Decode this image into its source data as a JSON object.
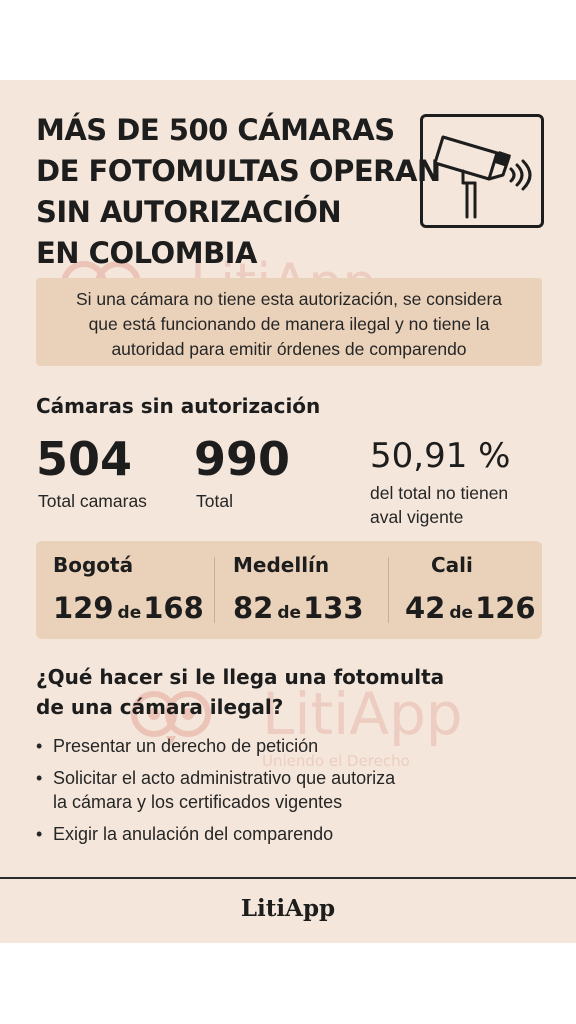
{
  "headline": {
    "lines": [
      "MÁS DE 500 CÁMARAS",
      "DE FOTOMULTAS OPERAN",
      "SIN AUTORIZACIÓN",
      "EN COLOMBIA"
    ]
  },
  "icons": {
    "camera": "security-camera-icon"
  },
  "watermark": {
    "brand": "LitiApp",
    "tagline": "Uniendo el Derecho",
    "color": "#e9b8ad"
  },
  "info": {
    "lines": [
      "Si una cámara no tiene esta autorización, se considera",
      "que está funcionando de manera ilegal y no tiene la",
      "autoridad para emitir órdenes de comparendo"
    ]
  },
  "stats": {
    "heading": "Cámaras sin autorización",
    "unauthorized": "504",
    "unauthorized_caption": "Total camaras",
    "total": "990",
    "total_caption": "Total",
    "percent": "50,91 %",
    "percent_caption_1": "del total no tienen",
    "percent_caption_2": "aval vigente"
  },
  "cities": [
    {
      "name": "Bogotá",
      "unauthorized": "129",
      "connector": "de",
      "total": "168"
    },
    {
      "name": "Medellín",
      "unauthorized": "82",
      "connector": "de",
      "total": "133"
    },
    {
      "name": "Cali",
      "unauthorized": "42",
      "connector": "de",
      "total": "126"
    }
  ],
  "question": {
    "lines": [
      "¿Qué hacer si le llega una fotomulta",
      "de una cámara ilegal?"
    ]
  },
  "steps": [
    {
      "lines": [
        "Presentar un derecho de petición"
      ]
    },
    {
      "lines": [
        "Solicitar el acto administrativo que autoriza",
        "la cámara y los certificados vigentes"
      ]
    },
    {
      "lines": [
        "Exigir la anulación del comparendo"
      ]
    }
  ],
  "footer": {
    "brand": "LitiApp"
  },
  "colors": {
    "card_background": "#f4e6da",
    "panel_background": "#ead2ba",
    "text": "#1d1d1d"
  }
}
